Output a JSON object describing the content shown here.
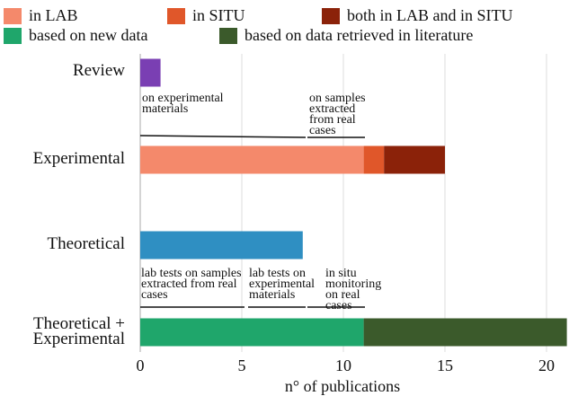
{
  "chart_data": {
    "type": "bar",
    "orientation": "horizontal",
    "categories": [
      "Review",
      "Experimental",
      "Theoretical",
      "Theoretical + Experimental"
    ],
    "series": [
      {
        "color": "#7a3fb3",
        "values": [
          1,
          null,
          null,
          null
        ]
      },
      {
        "name": "in LAB",
        "color": "#f4896b",
        "values": [
          null,
          11,
          null,
          null
        ]
      },
      {
        "name": "in SITU",
        "color": "#e0572a",
        "values": [
          null,
          1,
          null,
          null
        ]
      },
      {
        "name": "both in LAB and in SITU",
        "color": "#8b2209",
        "values": [
          null,
          3,
          null,
          null
        ]
      },
      {
        "color": "#2f8fc2",
        "values": [
          null,
          null,
          8,
          null
        ]
      },
      {
        "name": "based on new data",
        "color": "#1fa66b",
        "values": [
          null,
          null,
          null,
          11
        ]
      },
      {
        "name": "based on data retrieved in literature",
        "color": "#3b5a2b",
        "values": [
          null,
          null,
          null,
          10
        ]
      }
    ],
    "xlabel": "n° of publications",
    "xlim": [
      0,
      21
    ],
    "xticks": [
      0,
      5,
      10,
      15,
      20
    ],
    "grid": true,
    "annotations": [
      "on experimental materials",
      "on samples extracted from real cases",
      "lab tests on samples extracted from real cases",
      "lab tests on experimental materials",
      "in situ monitoring on real cases"
    ]
  }
}
